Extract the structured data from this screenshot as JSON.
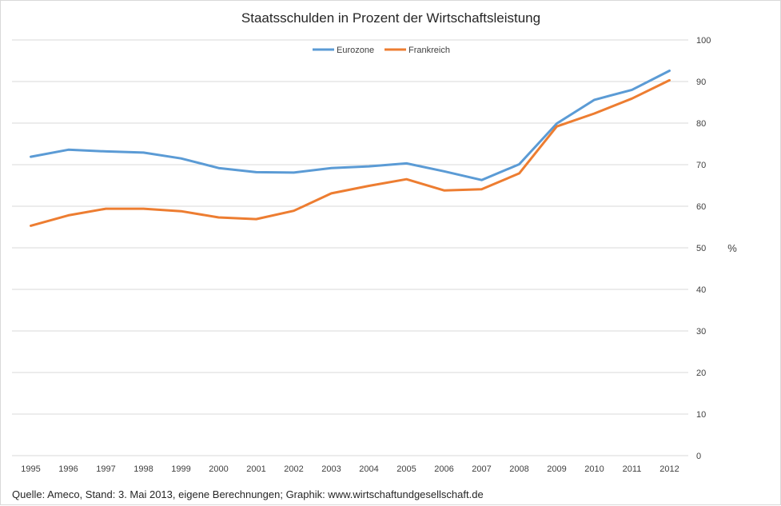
{
  "chart_data": {
    "type": "line",
    "title": "Staatsschulden in Prozent der Wirtschaftsleistung",
    "xlabel": "",
    "ylabel": "%",
    "ylim": [
      0,
      100
    ],
    "yticks": [
      0,
      10,
      20,
      30,
      40,
      50,
      60,
      70,
      80,
      90,
      100
    ],
    "y_axis_side": "right",
    "grid": true,
    "legend_position": "top-center",
    "categories": [
      "1995",
      "1996",
      "1997",
      "1998",
      "1999",
      "2000",
      "2001",
      "2002",
      "2003",
      "2004",
      "2005",
      "2006",
      "2007",
      "2008",
      "2009",
      "2010",
      "2011",
      "2012"
    ],
    "series": [
      {
        "name": "Eurozone",
        "color": "#5B9BD5",
        "values": [
          71.9,
          73.6,
          73.2,
          72.9,
          71.5,
          69.2,
          68.2,
          68.1,
          69.2,
          69.6,
          70.3,
          68.4,
          66.3,
          70.1,
          79.9,
          85.6,
          88.0,
          92.6
        ]
      },
      {
        "name": "Frankreich",
        "color": "#ED7D31",
        "values": [
          55.3,
          57.8,
          59.4,
          59.4,
          58.8,
          57.3,
          56.9,
          58.9,
          63.1,
          64.9,
          66.5,
          63.8,
          64.1,
          67.9,
          79.2,
          82.3,
          85.9,
          90.3
        ]
      }
    ],
    "footer": "Quelle: Ameco, Stand: 3. Mai 2013,  eigene Berechnungen; Graphik: www.wirtschaftundgesellschaft.de"
  }
}
